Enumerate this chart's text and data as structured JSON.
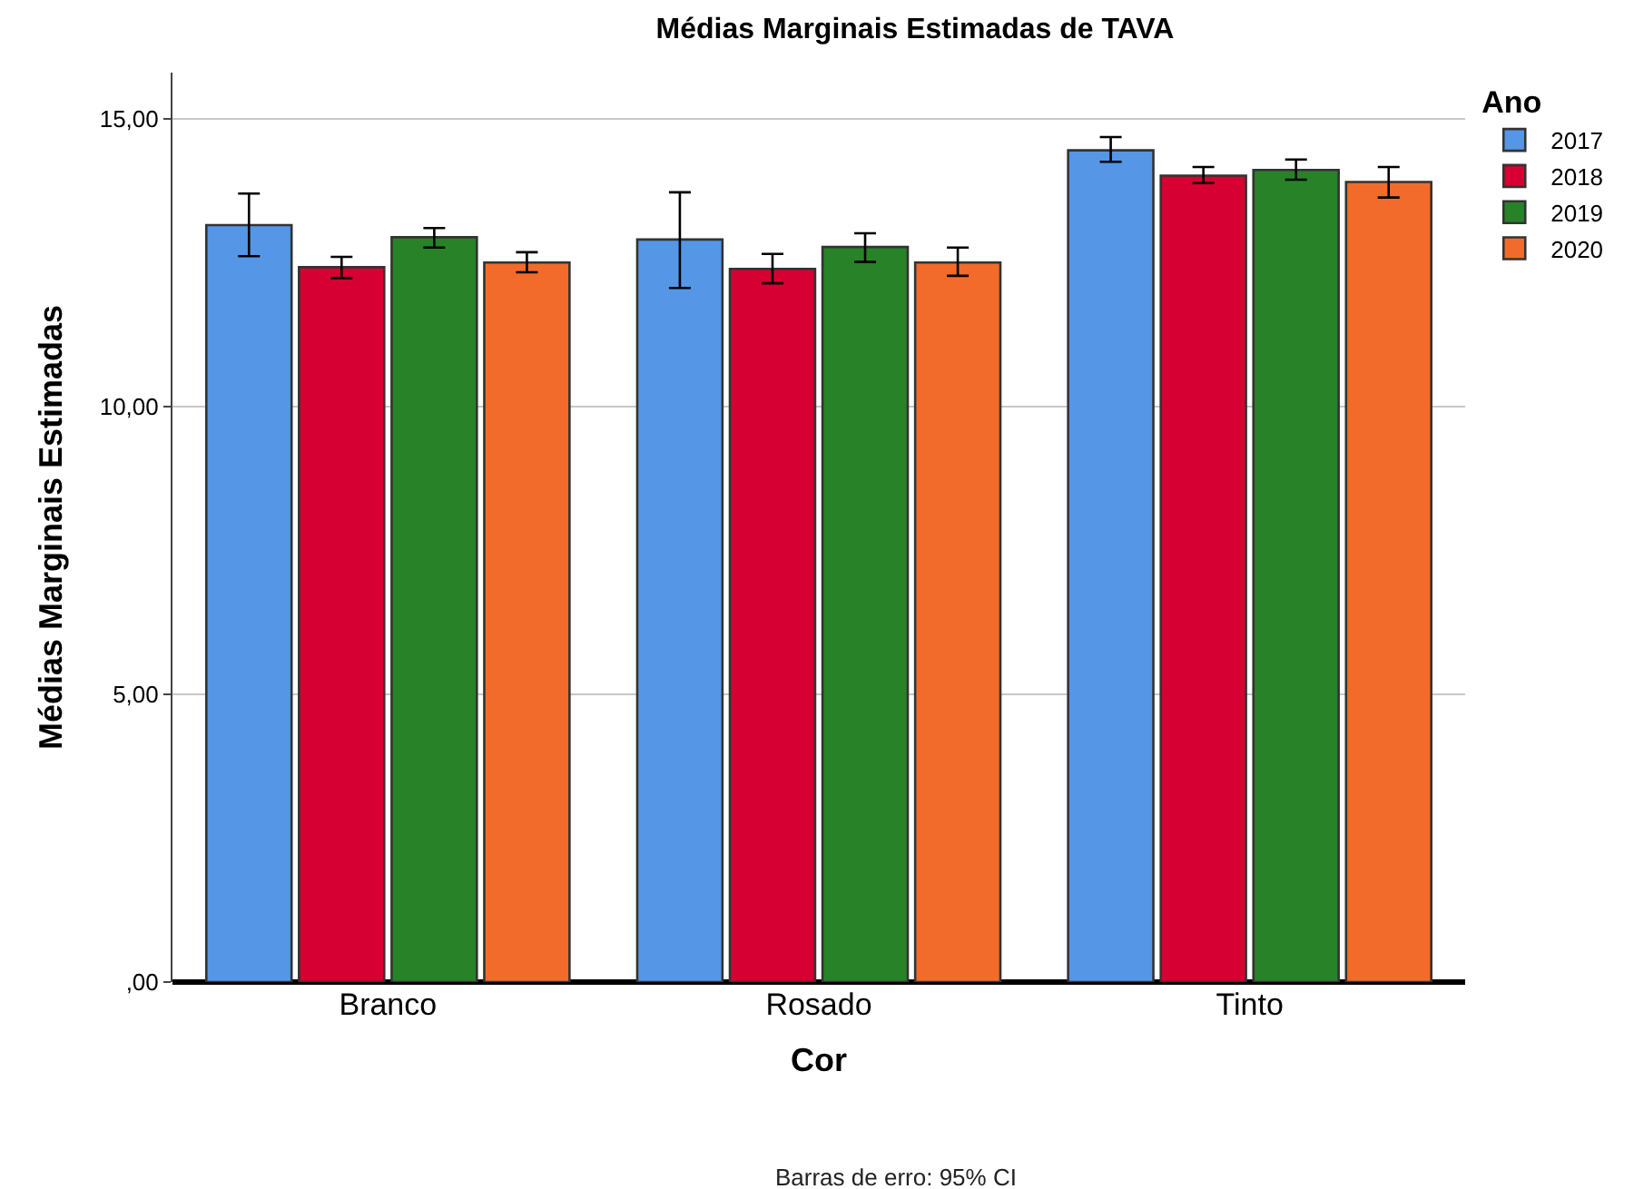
{
  "chart_data": {
    "type": "bar",
    "title": "Médias Marginais Estimadas de TAVA",
    "xlabel": "Cor",
    "ylabel": "Médias Marginais Estimadas",
    "legend_title": "Ano",
    "categories": [
      "Branco",
      "Rosado",
      "Tinto"
    ],
    "series": [
      {
        "name": "2017",
        "color": "#5596e6",
        "values": [
          13.15,
          12.9,
          14.45
        ],
        "errors": [
          [
            12.61,
            13.7
          ],
          [
            12.06,
            13.72
          ],
          [
            14.25,
            14.68
          ]
        ]
      },
      {
        "name": "2018",
        "color": "#d60032",
        "values": [
          12.42,
          12.39,
          14.01
        ],
        "errors": [
          [
            12.23,
            12.6
          ],
          [
            12.14,
            12.65
          ],
          [
            13.88,
            14.16
          ]
        ]
      },
      {
        "name": "2019",
        "color": "#288228",
        "values": [
          12.94,
          12.77,
          14.11
        ],
        "errors": [
          [
            12.76,
            13.1
          ],
          [
            12.51,
            13.01
          ],
          [
            13.94,
            14.29
          ]
        ]
      },
      {
        "name": "2020",
        "color": "#f36b2a",
        "values": [
          12.5,
          12.5,
          13.9
        ],
        "errors": [
          [
            12.33,
            12.68
          ],
          [
            12.27,
            12.76
          ],
          [
            13.63,
            14.16
          ]
        ]
      }
    ],
    "ylim": [
      0,
      15.8
    ],
    "yticks": [
      {
        "value": 0,
        "label": ",00"
      },
      {
        "value": 5,
        "label": "5,00"
      },
      {
        "value": 10,
        "label": "10,00"
      },
      {
        "value": 15,
        "label": "15,00"
      }
    ],
    "grid": "y",
    "legend": "top right",
    "annotations": [
      "Barras de erro: 95% CI"
    ]
  }
}
